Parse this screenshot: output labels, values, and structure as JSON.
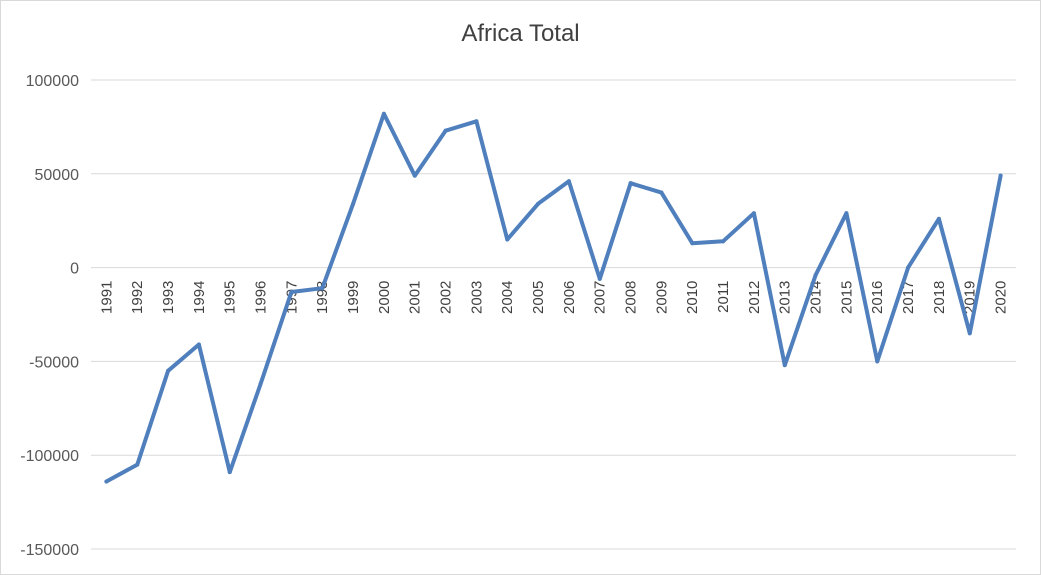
{
  "chart_data": {
    "type": "line",
    "title": "Africa Total",
    "xlabel": "",
    "ylabel": "",
    "ylim": [
      -150000,
      100000
    ],
    "yticks": [
      100000,
      50000,
      0,
      -50000,
      -100000,
      -150000
    ],
    "grid": true,
    "categories": [
      "1991",
      "1992",
      "1993",
      "1994",
      "1995",
      "1996",
      "1997",
      "1998",
      "1999",
      "2000",
      "2001",
      "2002",
      "2003",
      "2004",
      "2005",
      "2006",
      "2007",
      "2008",
      "2009",
      "2010",
      "2011",
      "2012",
      "2013",
      "2014",
      "2015",
      "2016",
      "2017",
      "2018",
      "2019",
      "2020"
    ],
    "series": [
      {
        "values": [
          -114000,
          -105000,
          -55000,
          -41000,
          -109000,
          -62000,
          -13000,
          -11000,
          34000,
          82000,
          49000,
          73000,
          78000,
          15000,
          34000,
          46000,
          -6000,
          45000,
          40000,
          13000,
          14000,
          29000,
          -52000,
          -4000,
          29000,
          -50000,
          0,
          26000,
          -35000,
          49000
        ],
        "color": "#4f7fbc"
      }
    ]
  }
}
